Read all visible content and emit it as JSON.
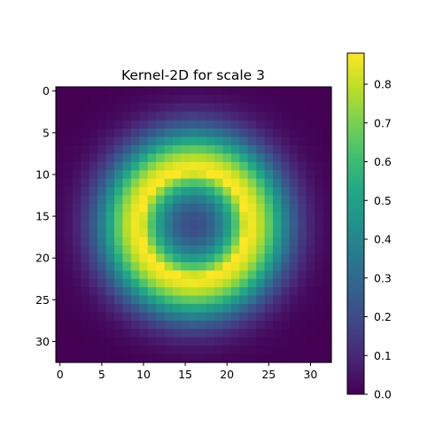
{
  "chart_data": {
    "type": "heatmap",
    "title": "Kernel-2D for scale 3",
    "grid_size": 33,
    "center": [
      16,
      16
    ],
    "ring_radius": 6.3,
    "ring_sigma": 3.6,
    "peak_value": 0.88,
    "center_value": 0.2,
    "xlim": [
      -0.5,
      32.5
    ],
    "ylim": [
      32.5,
      -0.5
    ],
    "xticks": [
      0,
      5,
      10,
      15,
      20,
      25,
      30
    ],
    "yticks": [
      0,
      5,
      10,
      15,
      20,
      25,
      30
    ],
    "xlabel": "",
    "ylabel": "",
    "colormap": "viridis",
    "colorbar": {
      "range": [
        0,
        0.88
      ],
      "ticks": [
        0.0,
        0.1,
        0.2,
        0.3,
        0.4,
        0.5,
        0.6,
        0.7,
        0.8
      ],
      "tick_labels": [
        "0.0",
        "0.1",
        "0.2",
        "0.3",
        "0.4",
        "0.5",
        "0.6",
        "0.7",
        "0.8"
      ]
    },
    "grid": false
  }
}
